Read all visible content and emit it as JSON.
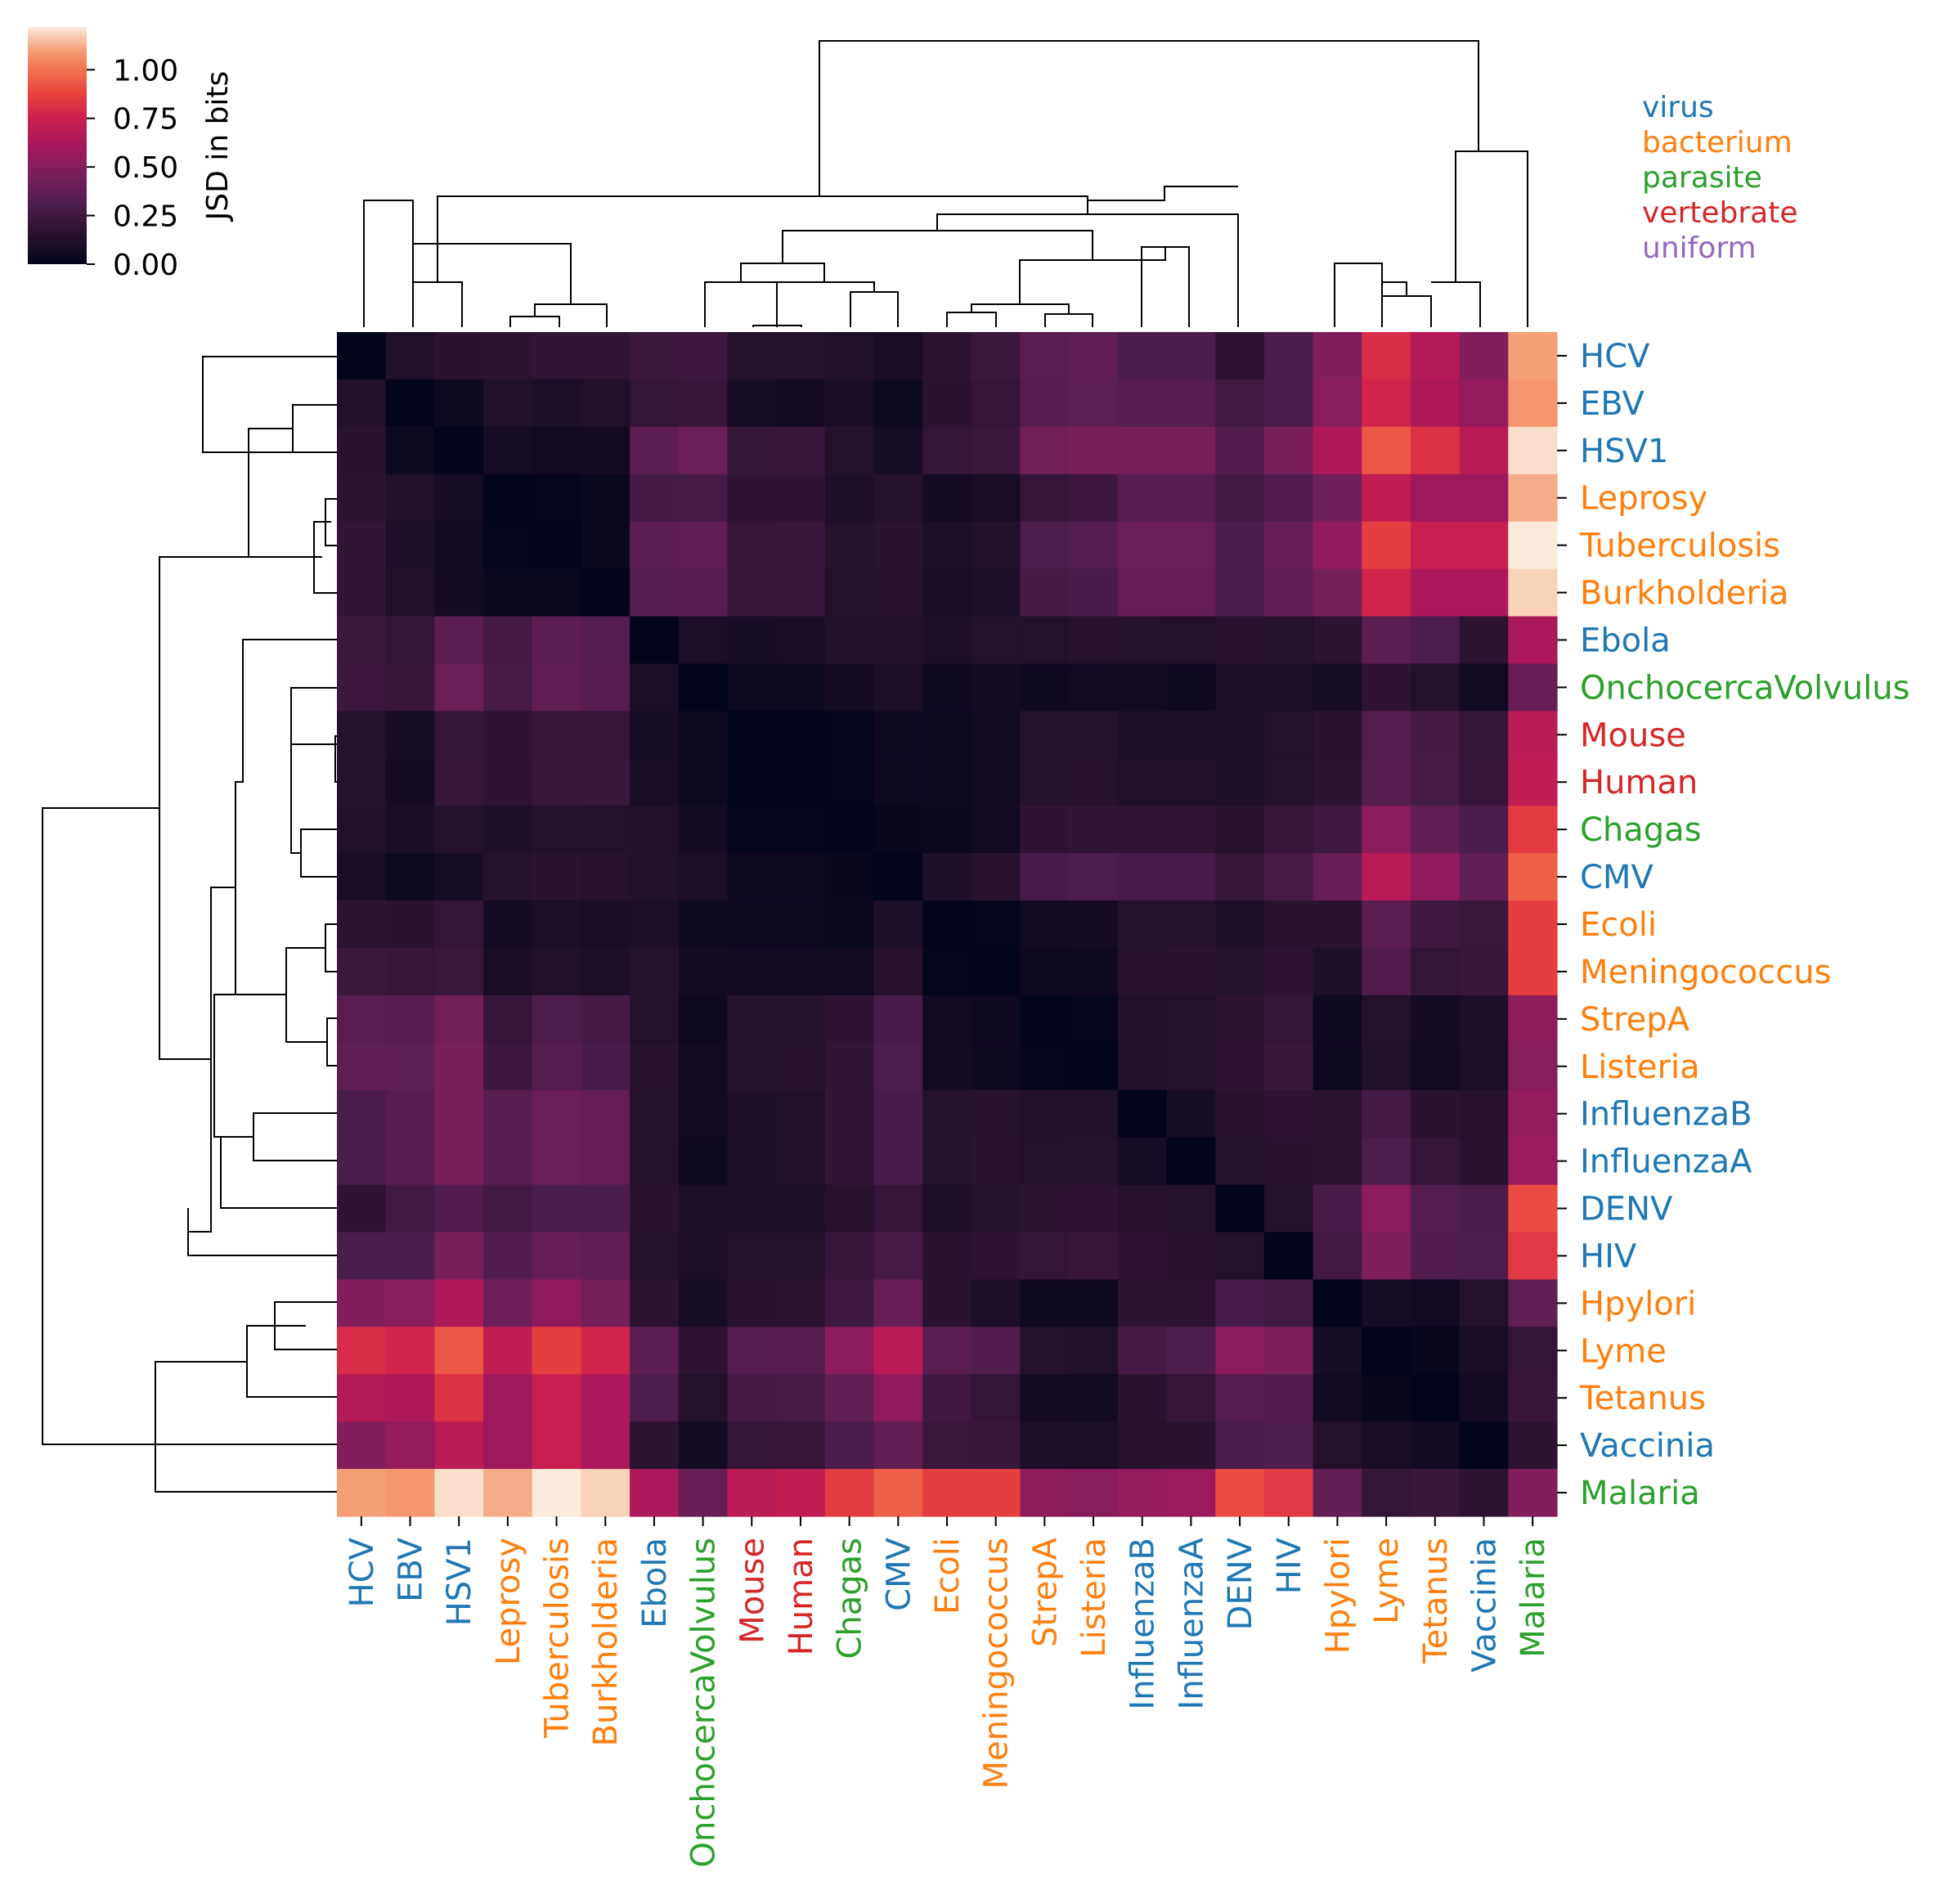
{
  "chart_data": {
    "type": "heatmap",
    "title": "",
    "labels": [
      "HCV",
      "EBV",
      "HSV1",
      "Leprosy",
      "Tuberculosis",
      "Burkholderia",
      "Ebola",
      "OnchocercaVolvulus",
      "Mouse",
      "Human",
      "Chagas",
      "CMV",
      "Ecoli",
      "Meningococcus",
      "StrepA",
      "Listeria",
      "InfluenzaB",
      "InfluenzaA",
      "DENV",
      "HIV",
      "Hpylori",
      "Lyme",
      "Tetanus",
      "Vaccinia",
      "Malaria"
    ],
    "categories": [
      "virus",
      "virus",
      "virus",
      "bacterium",
      "bacterium",
      "bacterium",
      "virus",
      "parasite",
      "vertebrate",
      "vertebrate",
      "parasite",
      "virus",
      "bacterium",
      "bacterium",
      "bacterium",
      "bacterium",
      "virus",
      "virus",
      "virus",
      "virus",
      "bacterium",
      "bacterium",
      "bacterium",
      "virus",
      "parasite"
    ],
    "category_colors": {
      "virus": "#1f77b4",
      "bacterium": "#ff7f0e",
      "parasite": "#2ca02c",
      "vertebrate": "#d62728",
      "uniform": "#9467bd"
    },
    "legend": [
      "virus",
      "bacterium",
      "parasite",
      "vertebrate",
      "uniform"
    ],
    "legend_placement": "top-right",
    "colorbar": {
      "label": "JSD in bits",
      "range": [
        0,
        1.22
      ],
      "ticks": [
        "0.00",
        "0.25",
        "0.50",
        "0.75",
        "1.00"
      ],
      "tick_values": [
        0,
        0.25,
        0.5,
        0.75,
        1.0
      ],
      "colormap": "rocket"
    },
    "matrix": [
      [
        0.0,
        0.12,
        0.16,
        0.17,
        0.19,
        0.19,
        0.23,
        0.24,
        0.14,
        0.14,
        0.12,
        0.09,
        0.17,
        0.23,
        0.35,
        0.38,
        0.3,
        0.3,
        0.18,
        0.3,
        0.49,
        0.8,
        0.66,
        0.49,
        1.1
      ],
      [
        0.12,
        0.0,
        0.04,
        0.12,
        0.11,
        0.12,
        0.2,
        0.22,
        0.08,
        0.07,
        0.09,
        0.04,
        0.16,
        0.21,
        0.34,
        0.37,
        0.34,
        0.34,
        0.26,
        0.3,
        0.51,
        0.77,
        0.64,
        0.55,
        1.08
      ],
      [
        0.16,
        0.04,
        0.0,
        0.08,
        0.06,
        0.07,
        0.36,
        0.41,
        0.2,
        0.21,
        0.13,
        0.08,
        0.2,
        0.23,
        0.44,
        0.46,
        0.46,
        0.46,
        0.32,
        0.46,
        0.64,
        0.93,
        0.82,
        0.68,
        1.2
      ],
      [
        0.17,
        0.12,
        0.08,
        0.0,
        0.01,
        0.03,
        0.27,
        0.28,
        0.18,
        0.18,
        0.11,
        0.14,
        0.07,
        0.09,
        0.21,
        0.24,
        0.34,
        0.34,
        0.26,
        0.32,
        0.43,
        0.71,
        0.58,
        0.58,
        1.12
      ],
      [
        0.19,
        0.11,
        0.06,
        0.01,
        0.0,
        0.03,
        0.36,
        0.38,
        0.21,
        0.22,
        0.14,
        0.16,
        0.1,
        0.12,
        0.31,
        0.33,
        0.41,
        0.41,
        0.3,
        0.4,
        0.54,
        0.86,
        0.73,
        0.73,
        1.22
      ],
      [
        0.19,
        0.12,
        0.07,
        0.03,
        0.03,
        0.0,
        0.33,
        0.34,
        0.21,
        0.22,
        0.13,
        0.15,
        0.09,
        0.1,
        0.27,
        0.29,
        0.39,
        0.39,
        0.3,
        0.38,
        0.45,
        0.77,
        0.63,
        0.63,
        1.18
      ],
      [
        0.23,
        0.2,
        0.36,
        0.27,
        0.36,
        0.33,
        0.0,
        0.1,
        0.08,
        0.09,
        0.12,
        0.12,
        0.1,
        0.13,
        0.13,
        0.15,
        0.14,
        0.13,
        0.16,
        0.14,
        0.17,
        0.36,
        0.31,
        0.17,
        0.63
      ],
      [
        0.24,
        0.22,
        0.41,
        0.28,
        0.38,
        0.34,
        0.1,
        0.0,
        0.04,
        0.04,
        0.07,
        0.1,
        0.05,
        0.07,
        0.05,
        0.06,
        0.06,
        0.05,
        0.1,
        0.1,
        0.08,
        0.18,
        0.13,
        0.06,
        0.4
      ],
      [
        0.14,
        0.08,
        0.2,
        0.18,
        0.21,
        0.21,
        0.08,
        0.04,
        0.0,
        0.0,
        0.01,
        0.05,
        0.04,
        0.06,
        0.13,
        0.14,
        0.11,
        0.11,
        0.11,
        0.13,
        0.16,
        0.33,
        0.27,
        0.2,
        0.69
      ],
      [
        0.14,
        0.07,
        0.21,
        0.18,
        0.22,
        0.22,
        0.09,
        0.04,
        0.0,
        0.0,
        0.01,
        0.05,
        0.04,
        0.06,
        0.14,
        0.15,
        0.12,
        0.12,
        0.11,
        0.13,
        0.17,
        0.34,
        0.28,
        0.21,
        0.71
      ],
      [
        0.12,
        0.09,
        0.13,
        0.11,
        0.14,
        0.13,
        0.12,
        0.07,
        0.01,
        0.01,
        0.0,
        0.02,
        0.03,
        0.06,
        0.18,
        0.19,
        0.19,
        0.19,
        0.15,
        0.22,
        0.25,
        0.52,
        0.38,
        0.3,
        0.85
      ],
      [
        0.09,
        0.04,
        0.08,
        0.14,
        0.16,
        0.15,
        0.12,
        0.1,
        0.05,
        0.05,
        0.02,
        0.0,
        0.11,
        0.15,
        0.29,
        0.31,
        0.29,
        0.29,
        0.21,
        0.28,
        0.4,
        0.68,
        0.54,
        0.38,
        0.95
      ],
      [
        0.17,
        0.16,
        0.2,
        0.07,
        0.1,
        0.09,
        0.1,
        0.05,
        0.04,
        0.04,
        0.03,
        0.11,
        0.0,
        0.01,
        0.06,
        0.07,
        0.14,
        0.14,
        0.11,
        0.16,
        0.16,
        0.35,
        0.25,
        0.23,
        0.86
      ],
      [
        0.23,
        0.21,
        0.23,
        0.09,
        0.12,
        0.1,
        0.13,
        0.07,
        0.06,
        0.06,
        0.06,
        0.15,
        0.01,
        0.0,
        0.05,
        0.05,
        0.15,
        0.16,
        0.13,
        0.18,
        0.11,
        0.32,
        0.2,
        0.22,
        0.86
      ],
      [
        0.35,
        0.34,
        0.44,
        0.21,
        0.31,
        0.27,
        0.13,
        0.05,
        0.13,
        0.14,
        0.18,
        0.29,
        0.06,
        0.05,
        0.0,
        0.01,
        0.12,
        0.13,
        0.17,
        0.2,
        0.05,
        0.13,
        0.07,
        0.11,
        0.53
      ],
      [
        0.38,
        0.37,
        0.46,
        0.24,
        0.33,
        0.29,
        0.15,
        0.06,
        0.14,
        0.15,
        0.19,
        0.31,
        0.07,
        0.05,
        0.01,
        0.0,
        0.12,
        0.14,
        0.18,
        0.22,
        0.05,
        0.12,
        0.06,
        0.1,
        0.51
      ],
      [
        0.3,
        0.34,
        0.46,
        0.34,
        0.41,
        0.39,
        0.14,
        0.06,
        0.11,
        0.12,
        0.19,
        0.29,
        0.14,
        0.15,
        0.12,
        0.12,
        0.0,
        0.08,
        0.15,
        0.18,
        0.17,
        0.27,
        0.16,
        0.15,
        0.55
      ],
      [
        0.3,
        0.34,
        0.46,
        0.34,
        0.41,
        0.39,
        0.13,
        0.05,
        0.11,
        0.12,
        0.19,
        0.29,
        0.14,
        0.16,
        0.13,
        0.14,
        0.08,
        0.0,
        0.14,
        0.16,
        0.17,
        0.31,
        0.21,
        0.16,
        0.57
      ],
      [
        0.18,
        0.26,
        0.32,
        0.26,
        0.3,
        0.3,
        0.16,
        0.1,
        0.11,
        0.11,
        0.15,
        0.21,
        0.11,
        0.13,
        0.17,
        0.18,
        0.15,
        0.14,
        0.0,
        0.13,
        0.29,
        0.52,
        0.33,
        0.3,
        0.9
      ],
      [
        0.3,
        0.3,
        0.46,
        0.32,
        0.4,
        0.38,
        0.14,
        0.1,
        0.13,
        0.13,
        0.22,
        0.28,
        0.16,
        0.18,
        0.2,
        0.22,
        0.18,
        0.16,
        0.13,
        0.0,
        0.26,
        0.48,
        0.32,
        0.31,
        0.84
      ],
      [
        0.49,
        0.51,
        0.64,
        0.43,
        0.54,
        0.45,
        0.17,
        0.08,
        0.16,
        0.17,
        0.25,
        0.4,
        0.16,
        0.11,
        0.05,
        0.05,
        0.17,
        0.17,
        0.29,
        0.26,
        0.0,
        0.08,
        0.06,
        0.13,
        0.38
      ],
      [
        0.8,
        0.77,
        0.93,
        0.71,
        0.86,
        0.77,
        0.36,
        0.18,
        0.33,
        0.34,
        0.52,
        0.68,
        0.35,
        0.32,
        0.13,
        0.12,
        0.27,
        0.31,
        0.52,
        0.48,
        0.08,
        0.0,
        0.02,
        0.09,
        0.2
      ],
      [
        0.66,
        0.64,
        0.82,
        0.58,
        0.73,
        0.63,
        0.31,
        0.13,
        0.27,
        0.28,
        0.38,
        0.54,
        0.25,
        0.2,
        0.07,
        0.06,
        0.16,
        0.21,
        0.33,
        0.32,
        0.06,
        0.02,
        0.0,
        0.07,
        0.22
      ],
      [
        0.49,
        0.55,
        0.68,
        0.58,
        0.73,
        0.63,
        0.17,
        0.06,
        0.2,
        0.21,
        0.3,
        0.38,
        0.23,
        0.22,
        0.11,
        0.1,
        0.15,
        0.16,
        0.3,
        0.31,
        0.13,
        0.09,
        0.07,
        0.0,
        0.17
      ],
      [
        1.1,
        1.08,
        1.2,
        1.12,
        1.22,
        1.18,
        0.63,
        0.4,
        0.69,
        0.71,
        0.85,
        0.95,
        0.86,
        0.86,
        0.53,
        0.51,
        0.55,
        0.57,
        0.9,
        0.84,
        0.38,
        0.2,
        0.22,
        0.17,
        0.5
      ]
    ]
  }
}
